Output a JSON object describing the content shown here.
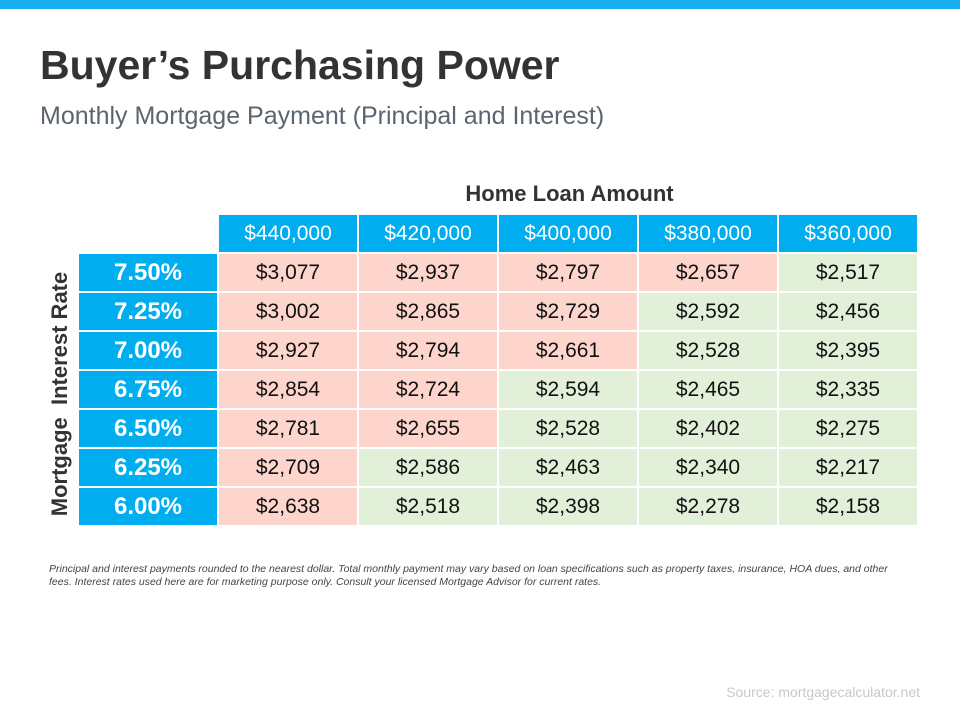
{
  "title": "Buyer’s Purchasing Power",
  "subtitle": "Monthly Mortgage Payment (Principal and Interest)",
  "column_header": "Home Loan Amount",
  "row_header": "Mortgage  Interest Rate",
  "colors": {
    "header_blue": "#00aeef",
    "higher": "#fdd5cc",
    "lower": "#e2f0d9"
  },
  "loan_amounts": [
    "$440,000",
    "$420,000",
    "$400,000",
    "$380,000",
    "$360,000"
  ],
  "rows": [
    {
      "rate": "7.50%",
      "payments": [
        "$3,077",
        "$2,937",
        "$2,797",
        "$2,657",
        "$2,517"
      ],
      "shading": [
        "pink",
        "pink",
        "pink",
        "pink",
        "green"
      ]
    },
    {
      "rate": "7.25%",
      "payments": [
        "$3,002",
        "$2,865",
        "$2,729",
        "$2,592",
        "$2,456"
      ],
      "shading": [
        "pink",
        "pink",
        "pink",
        "green",
        "green"
      ]
    },
    {
      "rate": "7.00%",
      "payments": [
        "$2,927",
        "$2,794",
        "$2,661",
        "$2,528",
        "$2,395"
      ],
      "shading": [
        "pink",
        "pink",
        "pink",
        "green",
        "green"
      ]
    },
    {
      "rate": "6.75%",
      "payments": [
        "$2,854",
        "$2,724",
        "$2,594",
        "$2,465",
        "$2,335"
      ],
      "shading": [
        "pink",
        "pink",
        "green",
        "green",
        "green"
      ]
    },
    {
      "rate": "6.50%",
      "payments": [
        "$2,781",
        "$2,655",
        "$2,528",
        "$2,402",
        "$2,275"
      ],
      "shading": [
        "pink",
        "pink",
        "green",
        "green",
        "green"
      ]
    },
    {
      "rate": "6.25%",
      "payments": [
        "$2,709",
        "$2,586",
        "$2,463",
        "$2,340",
        "$2,217"
      ],
      "shading": [
        "pink",
        "green",
        "green",
        "green",
        "green"
      ]
    },
    {
      "rate": "6.00%",
      "payments": [
        "$2,638",
        "$2,518",
        "$2,398",
        "$2,278",
        "$2,158"
      ],
      "shading": [
        "pink",
        "green",
        "green",
        "green",
        "green"
      ]
    }
  ],
  "footnote": "Principal and interest payments rounded to the nearest dollar. Total monthly payment may vary based on loan specifications such as property taxes, insurance, HOA dues, and other fees. Interest rates used here are for marketing purpose only. Consult your licensed Mortgage Advisor for current rates.",
  "source": "Source: mortgagecalculator.net"
}
